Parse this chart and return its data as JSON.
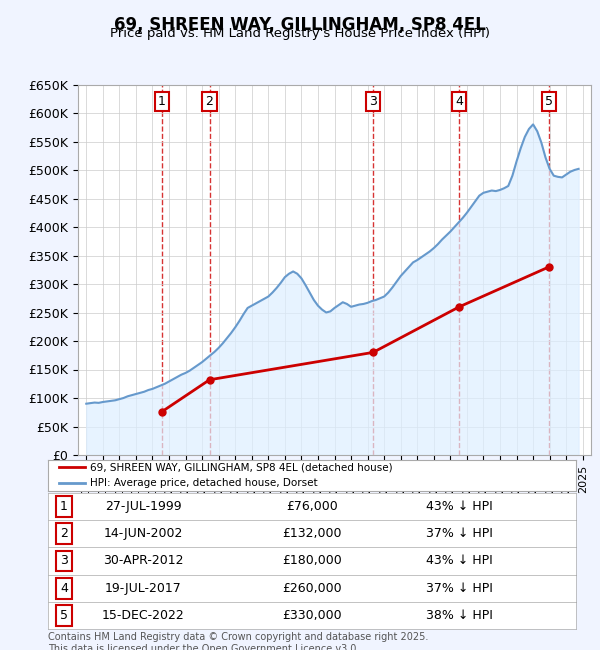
{
  "title": "69, SHREEN WAY, GILLINGHAM, SP8 4EL",
  "subtitle": "Price paid vs. HM Land Registry's House Price Index (HPI)",
  "ylabel": "",
  "ylim": [
    0,
    650000
  ],
  "yticks": [
    0,
    50000,
    100000,
    150000,
    200000,
    250000,
    300000,
    350000,
    400000,
    450000,
    500000,
    550000,
    600000,
    650000
  ],
  "ytick_labels": [
    "£0",
    "£50K",
    "£100K",
    "£150K",
    "£200K",
    "£250K",
    "£300K",
    "£350K",
    "£400K",
    "£450K",
    "£500K",
    "£550K",
    "£600K",
    "£650K"
  ],
  "background_color": "#f0f4ff",
  "plot_bg_color": "#ffffff",
  "grid_color": "#cccccc",
  "sale_dates_x": [
    1999.57,
    2002.45,
    2012.33,
    2017.54,
    2022.96
  ],
  "sale_prices_y": [
    76000,
    132000,
    180000,
    260000,
    330000
  ],
  "sale_labels": [
    "1",
    "2",
    "3",
    "4",
    "5"
  ],
  "sale_color": "#cc0000",
  "hpi_color": "#6699cc",
  "hpi_area_color": "#ddeeff",
  "legend_sale_label": "69, SHREEN WAY, GILLINGHAM, SP8 4EL (detached house)",
  "legend_hpi_label": "HPI: Average price, detached house, Dorset",
  "transactions": [
    {
      "num": 1,
      "date": "27-JUL-1999",
      "price": "£76,000",
      "hpi": "43% ↓ HPI"
    },
    {
      "num": 2,
      "date": "14-JUN-2002",
      "price": "£132,000",
      "hpi": "37% ↓ HPI"
    },
    {
      "num": 3,
      "date": "30-APR-2012",
      "price": "£180,000",
      "hpi": "43% ↓ HPI"
    },
    {
      "num": 4,
      "date": "19-JUL-2017",
      "price": "£260,000",
      "hpi": "37% ↓ HPI"
    },
    {
      "num": 5,
      "date": "15-DEC-2022",
      "price": "£330,000",
      "hpi": "38% ↓ HPI"
    }
  ],
  "footer": "Contains HM Land Registry data © Crown copyright and database right 2025.\nThis data is licensed under the Open Government Licence v3.0.",
  "hpi_x": [
    1995.0,
    1995.25,
    1995.5,
    1995.75,
    1996.0,
    1996.25,
    1996.5,
    1996.75,
    1997.0,
    1997.25,
    1997.5,
    1997.75,
    1998.0,
    1998.25,
    1998.5,
    1998.75,
    1999.0,
    1999.25,
    1999.5,
    1999.75,
    2000.0,
    2000.25,
    2000.5,
    2000.75,
    2001.0,
    2001.25,
    2001.5,
    2001.75,
    2002.0,
    2002.25,
    2002.5,
    2002.75,
    2003.0,
    2003.25,
    2003.5,
    2003.75,
    2004.0,
    2004.25,
    2004.5,
    2004.75,
    2005.0,
    2005.25,
    2005.5,
    2005.75,
    2006.0,
    2006.25,
    2006.5,
    2006.75,
    2007.0,
    2007.25,
    2007.5,
    2007.75,
    2008.0,
    2008.25,
    2008.5,
    2008.75,
    2009.0,
    2009.25,
    2009.5,
    2009.75,
    2010.0,
    2010.25,
    2010.5,
    2010.75,
    2011.0,
    2011.25,
    2011.5,
    2011.75,
    2012.0,
    2012.25,
    2012.5,
    2012.75,
    2013.0,
    2013.25,
    2013.5,
    2013.75,
    2014.0,
    2014.25,
    2014.5,
    2014.75,
    2015.0,
    2015.25,
    2015.5,
    2015.75,
    2016.0,
    2016.25,
    2016.5,
    2016.75,
    2017.0,
    2017.25,
    2017.5,
    2017.75,
    2018.0,
    2018.25,
    2018.5,
    2018.75,
    2019.0,
    2019.25,
    2019.5,
    2019.75,
    2020.0,
    2020.25,
    2020.5,
    2020.75,
    2021.0,
    2021.25,
    2021.5,
    2021.75,
    2022.0,
    2022.25,
    2022.5,
    2022.75,
    2023.0,
    2023.25,
    2023.5,
    2023.75,
    2024.0,
    2024.25,
    2024.5,
    2024.75
  ],
  "hpi_y": [
    90000,
    91000,
    92000,
    91500,
    93000,
    94000,
    95000,
    96000,
    98000,
    100000,
    103000,
    105000,
    107000,
    109000,
    111000,
    114000,
    116000,
    119000,
    122000,
    125000,
    129000,
    133000,
    137000,
    141000,
    144000,
    148000,
    153000,
    158000,
    163000,
    169000,
    175000,
    181000,
    188000,
    196000,
    205000,
    214000,
    224000,
    235000,
    247000,
    258000,
    262000,
    266000,
    270000,
    274000,
    278000,
    285000,
    293000,
    302000,
    312000,
    318000,
    322000,
    318000,
    310000,
    298000,
    285000,
    272000,
    262000,
    255000,
    250000,
    252000,
    258000,
    263000,
    268000,
    265000,
    260000,
    262000,
    264000,
    265000,
    267000,
    270000,
    272000,
    275000,
    278000,
    285000,
    294000,
    304000,
    314000,
    322000,
    330000,
    338000,
    342000,
    347000,
    352000,
    357000,
    363000,
    370000,
    378000,
    385000,
    392000,
    400000,
    408000,
    416000,
    425000,
    435000,
    445000,
    455000,
    460000,
    462000,
    464000,
    463000,
    465000,
    468000,
    472000,
    490000,
    515000,
    538000,
    558000,
    572000,
    580000,
    568000,
    548000,
    522000,
    502000,
    490000,
    488000,
    487000,
    492000,
    497000,
    500000,
    502000
  ]
}
